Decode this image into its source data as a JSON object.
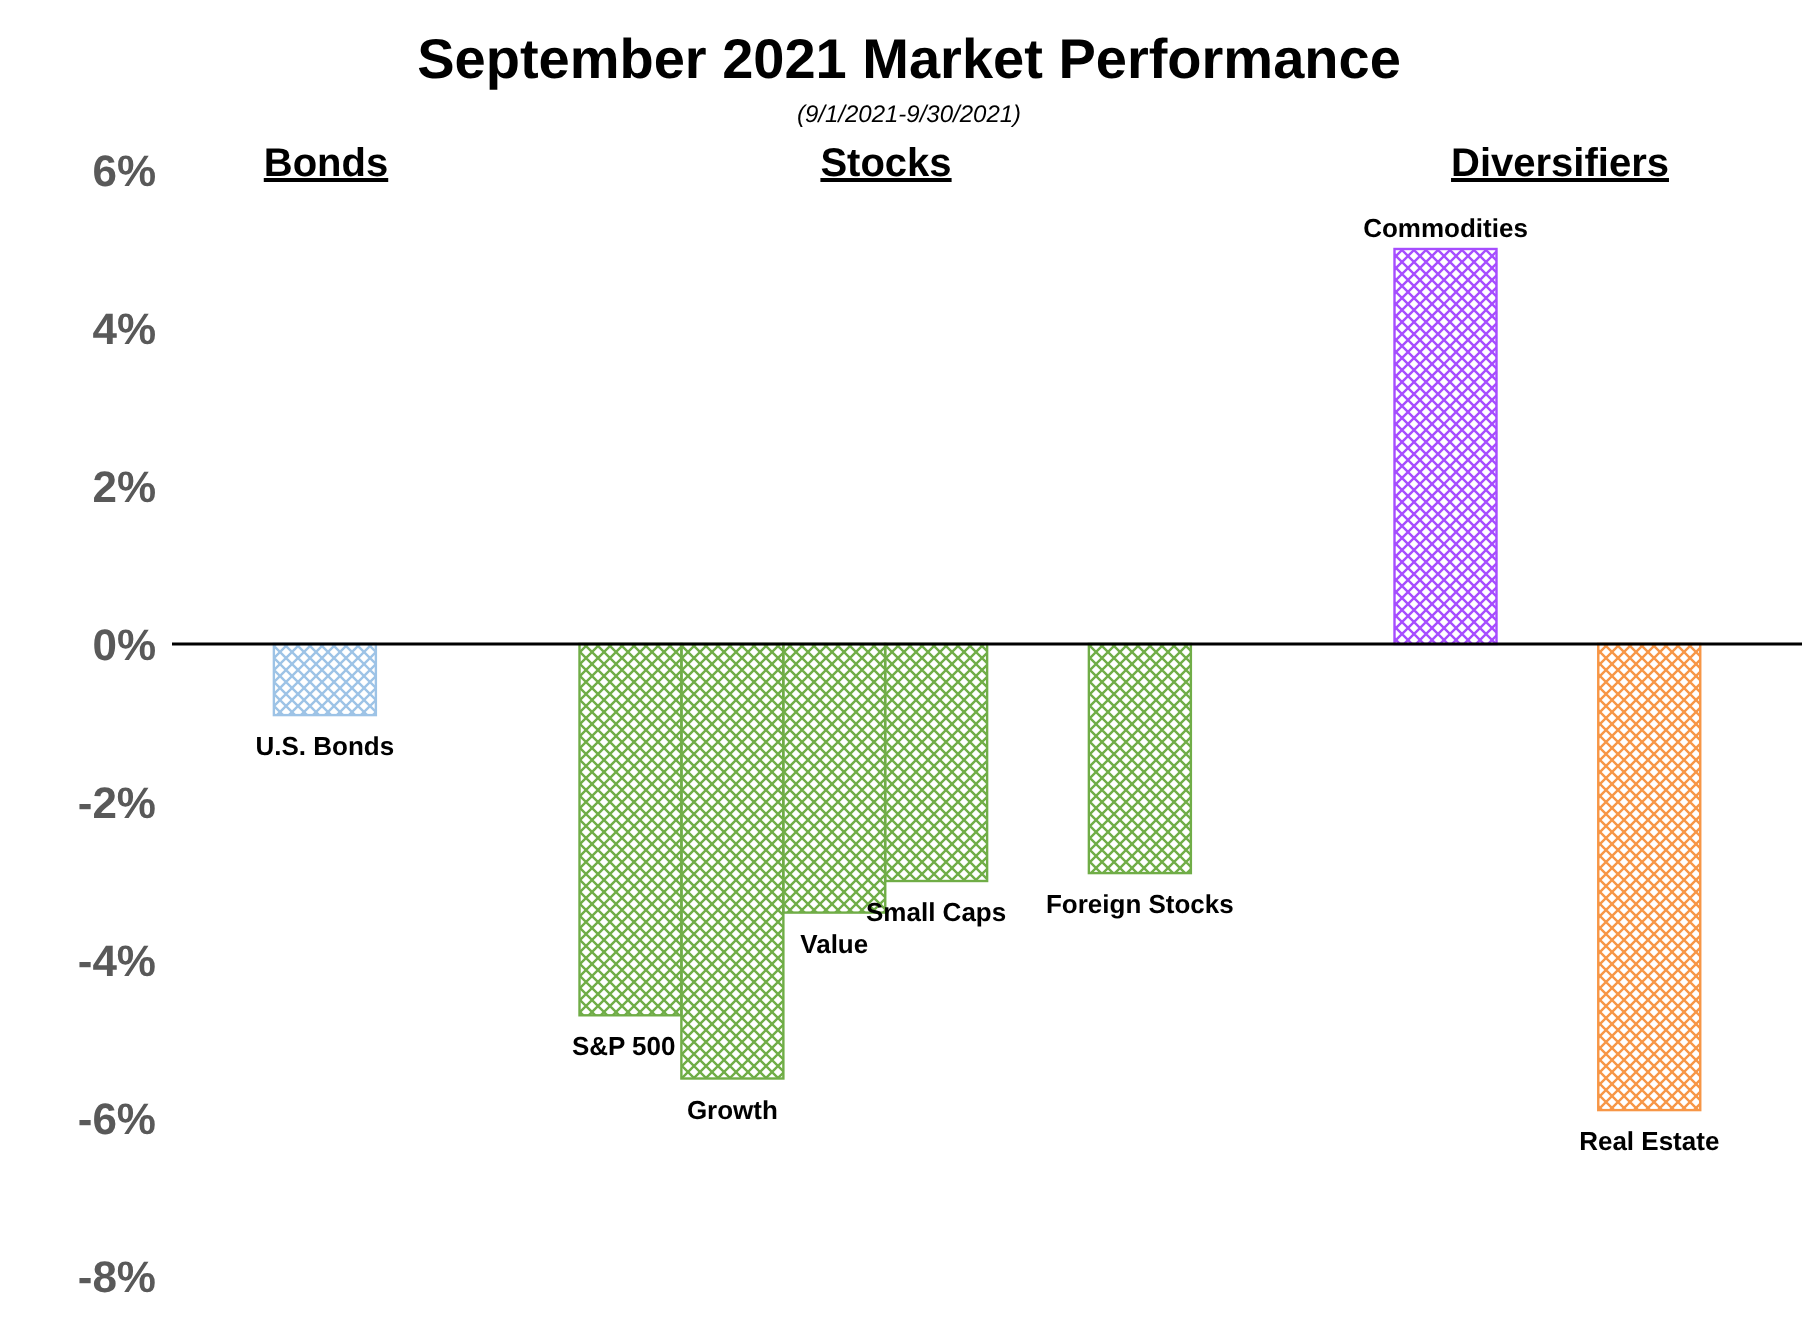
{
  "chart_data": {
    "type": "bar",
    "title": "September 2021 Market Performance",
    "subtitle": "(9/1/2021-9/30/2021)",
    "categories": [
      null,
      "U.S. Bonds",
      null,
      null,
      "S&P 500",
      "Growth",
      "Value",
      "Small Caps",
      null,
      "Foreign Stocks",
      null,
      null,
      "Commodities",
      null,
      "Real Estate",
      null
    ],
    "values": [
      null,
      -0.9,
      null,
      null,
      -4.7,
      -5.5,
      -3.4,
      -3.0,
      null,
      -2.9,
      null,
      null,
      5.0,
      null,
      -5.9,
      null
    ],
    "colors": [
      "#70ad47",
      "#9dc3e6",
      "#70ad47",
      "#70ad47",
      "#70ad47",
      "#70ad47",
      "#70ad47",
      "#70ad47",
      "#70ad47",
      "#70ad47",
      "#70ad47",
      "#70ad47",
      "#a64dff",
      "#70ad47",
      "#f79646",
      "#70ad47"
    ],
    "annotations": [
      "Bonds",
      "Stocks",
      "Diversifiers"
    ],
    "ref_lines": [
      {
        "axis": "y",
        "value": 0,
        "color": "#000000"
      }
    ],
    "ylim": [
      -8,
      6
    ],
    "yticks": [
      {
        "value": -8,
        "label": "-8%"
      },
      {
        "value": -6,
        "label": "-6%"
      },
      {
        "value": -4,
        "label": "-4%"
      },
      {
        "value": -2,
        "label": "-2%"
      },
      {
        "value": 0,
        "label": "0%"
      },
      {
        "value": 2,
        "label": "2%"
      },
      {
        "value": 4,
        "label": "4%"
      },
      {
        "value": 6,
        "label": "6%"
      }
    ],
    "grid": false,
    "legend": false,
    "tick_labels": "y"
  }
}
